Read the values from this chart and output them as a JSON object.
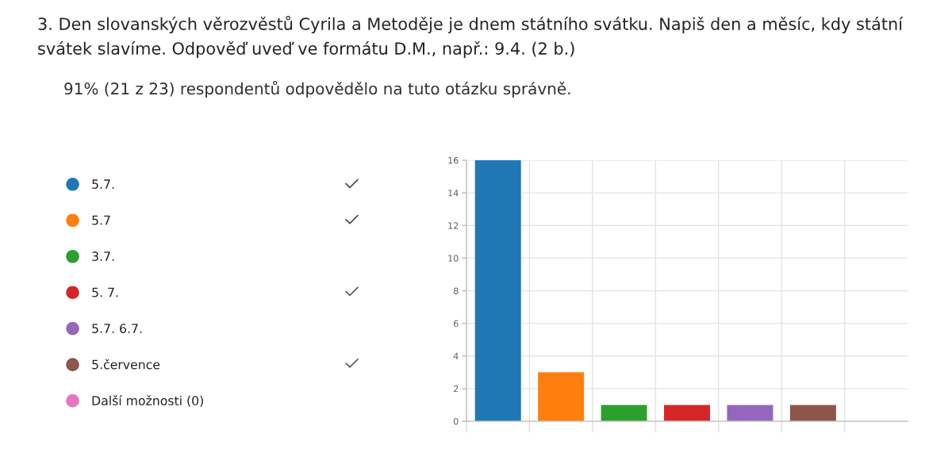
{
  "chart_data": {
    "type": "bar",
    "title": "3. Den slovanských věrozvěstů Cyrila a Metoděje je dnem státního svátku. Napiš den a měsíc, kdy státní svátek slavíme. Odpověď uveď ve formátu D.M., např.: 9.4. (2 b.)",
    "subtitle": "91% (21 z 23) respondentů odpovědělo na tuto otázku správně.",
    "categories": [
      null,
      null,
      null,
      null,
      null,
      null,
      null
    ],
    "series": [
      {
        "name": "5.7.",
        "color": "#1f77b4",
        "values": [
          16,
          null,
          null,
          null,
          null,
          null,
          null
        ]
      },
      {
        "name": "5.7",
        "color": "#ff7f0e",
        "values": [
          null,
          3,
          null,
          null,
          null,
          null,
          null
        ]
      },
      {
        "name": "3.7.",
        "color": "#2ca02c",
        "values": [
          null,
          null,
          1,
          null,
          null,
          null,
          null
        ]
      },
      {
        "name": "5. 7.",
        "color": "#d62728",
        "values": [
          null,
          null,
          null,
          1,
          null,
          null,
          null
        ]
      },
      {
        "name": "5.7. 6.7.",
        "color": "#9467bd",
        "values": [
          null,
          null,
          null,
          null,
          1,
          null,
          null
        ]
      },
      {
        "name": "5.července",
        "color": "#8c564b",
        "values": [
          null,
          null,
          null,
          null,
          null,
          1,
          null
        ]
      },
      {
        "name": "Další možnosti (0)",
        "color": "#e377c2",
        "values": [
          null,
          null,
          null,
          null,
          null,
          null,
          null
        ]
      }
    ],
    "stacked": true,
    "ylim": [
      0,
      16
    ],
    "yticks": [
      0,
      2,
      4,
      6,
      8,
      10,
      12,
      14,
      16
    ],
    "grid": true,
    "legend": "left",
    "tick_labels": "y"
  }
}
